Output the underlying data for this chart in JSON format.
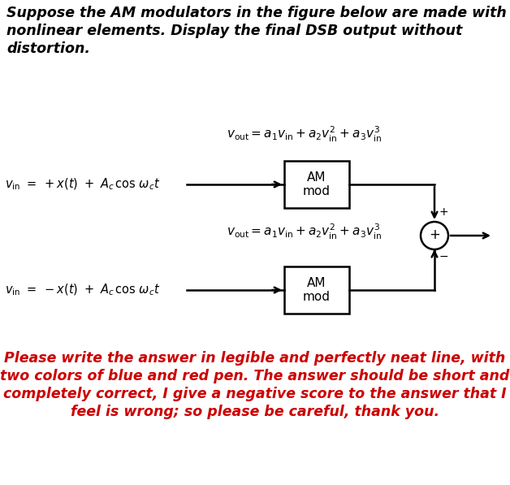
{
  "title_lines": [
    "Suppose the AM modulators in the figure below are made with",
    "nonlinear elements. Display the final DSB output without",
    "distortion."
  ],
  "title_color": "#000000",
  "title_fontsize": 12.5,
  "eq_top_label": "v",
  "eq_bottom_label": "v",
  "box1_label": "AM\nmod",
  "box2_label": "AM\nmod",
  "red_lines": [
    "Please write the answer in legible and perfectly neat line, with",
    "two colors of blue and red pen. The answer should be short and",
    "completely correct, I give a negative score to the answer that I",
    "feel is wrong; so please be careful, thank you."
  ],
  "red_color": "#cc0000",
  "red_fontsize": 12.5,
  "bg_color": "#ffffff"
}
